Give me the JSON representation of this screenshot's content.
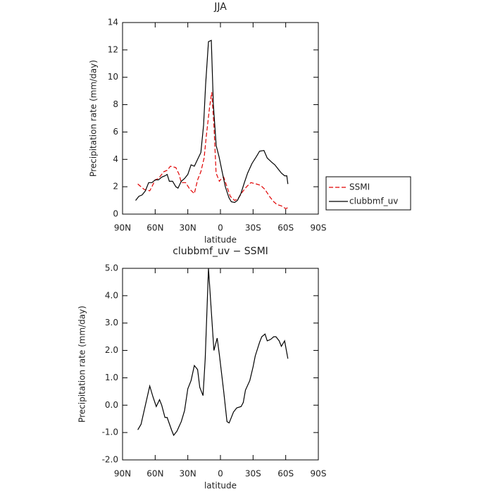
{
  "chart_data": [
    {
      "type": "line",
      "title": "JJA",
      "x_label": "latitude",
      "y_label": "Precipitation rate (mm/day)",
      "xlim": [
        90,
        -90
      ],
      "ylim": [
        0,
        14
      ],
      "xticks": [
        {
          "value": 90,
          "label": "90N"
        },
        {
          "value": 60,
          "label": "60N"
        },
        {
          "value": 30,
          "label": "30N"
        },
        0,
        {
          "value": -30,
          "label": "30S"
        },
        {
          "value": -60,
          "label": "60S"
        },
        {
          "value": -90,
          "label": "90S"
        }
      ],
      "yticks": [
        0,
        2,
        4,
        6,
        8,
        10,
        12,
        14
      ],
      "legend": "right",
      "series": [
        {
          "name": "SSMI",
          "color": "#e00000",
          "line_style": "dashed",
          "x": [
            76,
            73,
            70,
            65,
            63,
            60,
            57,
            52,
            49,
            46,
            41,
            38,
            36,
            32,
            28,
            24,
            21,
            18,
            15,
            13,
            10,
            8,
            6,
            4,
            1,
            -1,
            -3,
            -6,
            -9,
            -13,
            -16,
            -20,
            -24,
            -28,
            -33,
            -37,
            -41,
            -45,
            -49,
            -52,
            -56,
            -60,
            -63
          ],
          "values": [
            2.2,
            2.0,
            1.8,
            1.7,
            2.0,
            2.5,
            2.6,
            3.1,
            3.2,
            3.5,
            3.4,
            2.9,
            2.3,
            2.3,
            1.8,
            1.5,
            2.5,
            3.1,
            4.1,
            5.7,
            7.8,
            8.9,
            6.5,
            3.0,
            2.4,
            2.6,
            2.7,
            2.0,
            1.3,
            1.0,
            1.1,
            1.6,
            2.0,
            2.3,
            2.2,
            2.1,
            1.8,
            1.3,
            0.9,
            0.7,
            0.6,
            0.4,
            0.5
          ]
        },
        {
          "name": "clubbmf_uv",
          "color": "#000000",
          "line_style": "solid",
          "x": [
            78,
            75,
            72,
            69,
            66,
            63,
            60,
            57,
            54,
            51,
            49,
            47,
            44,
            41,
            39,
            36,
            33,
            30,
            27,
            24,
            21,
            18,
            15.5,
            13.6,
            11,
            8.4,
            6.5,
            3.9,
            1.3,
            -1.3,
            -4.5,
            -7.8,
            -10,
            -13,
            -15.6,
            -18.8,
            -22,
            -25,
            -29,
            -33,
            -36,
            -40,
            -43,
            -47,
            -50,
            -53,
            -56,
            -59,
            -61,
            -62
          ],
          "values": [
            1.0,
            1.3,
            1.4,
            1.7,
            2.3,
            2.3,
            2.5,
            2.5,
            2.7,
            2.8,
            2.9,
            2.4,
            2.4,
            2.0,
            1.9,
            2.4,
            2.6,
            2.9,
            3.6,
            3.5,
            4.0,
            4.5,
            6.5,
            9.5,
            12.6,
            12.7,
            8.0,
            5.0,
            4.2,
            3.2,
            2.0,
            1.2,
            0.9,
            0.85,
            1.0,
            1.5,
            2.3,
            3.0,
            3.7,
            4.2,
            4.6,
            4.65,
            4.1,
            3.8,
            3.6,
            3.3,
            3.0,
            2.8,
            2.8,
            2.2
          ]
        }
      ]
    },
    {
      "type": "line",
      "title": "clubbmf_uv − SSMI",
      "x_label": "latitude",
      "y_label": "Precipitation rate (mm/day)",
      "xlim": [
        90,
        -90
      ],
      "ylim": [
        -2,
        5
      ],
      "xticks": [
        {
          "value": 90,
          "label": "90N"
        },
        {
          "value": 60,
          "label": "60N"
        },
        {
          "value": 30,
          "label": "30N"
        },
        0,
        {
          "value": -30,
          "label": "30S"
        },
        {
          "value": -60,
          "label": "60S"
        },
        {
          "value": -90,
          "label": "90S"
        }
      ],
      "yticks": [
        {
          "value": -2,
          "label": "-2.0"
        },
        {
          "value": -1,
          "label": "-1.0"
        },
        {
          "value": 0,
          "label": "0.0"
        },
        {
          "value": 1,
          "label": "1.0"
        },
        {
          "value": 2,
          "label": "2.0"
        },
        {
          "value": 3,
          "label": "3.0"
        },
        {
          "value": 4,
          "label": "4.0"
        },
        {
          "value": 5,
          "label": "5.0"
        }
      ],
      "color": "#000000",
      "x": [
        76,
        73,
        69,
        65,
        62,
        59,
        56,
        54,
        51,
        49,
        45,
        43,
        40,
        36,
        33,
        30,
        27,
        24,
        21,
        19,
        16,
        14,
        11,
        9,
        6,
        3,
        1,
        -3,
        -6,
        -8,
        -12,
        -15,
        -19,
        -21,
        -23,
        -27,
        -30,
        -32,
        -36,
        -38,
        -41,
        -43,
        -46,
        -49,
        -51,
        -54,
        -56,
        -59,
        -62
      ],
      "values": [
        -0.9,
        -0.7,
        0,
        0.7,
        0.3,
        -0.05,
        0.2,
        0,
        -0.45,
        -0.45,
        -0.9,
        -1.1,
        -0.95,
        -0.6,
        -0.2,
        0.6,
        0.9,
        1.45,
        1.3,
        0.65,
        0.35,
        1.7,
        5.0,
        3.8,
        2.0,
        2.45,
        1.85,
        0.5,
        -0.6,
        -0.65,
        -0.25,
        -0.1,
        -0.05,
        0.1,
        0.55,
        0.9,
        1.4,
        1.8,
        2.3,
        2.5,
        2.6,
        2.35,
        2.4,
        2.5,
        2.5,
        2.35,
        2.15,
        2.35,
        1.7
      ]
    }
  ]
}
